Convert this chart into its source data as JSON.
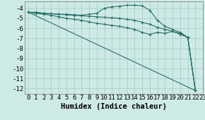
{
  "bg_color": "#ceeae6",
  "grid_color": "#aacfca",
  "line_color": "#2a6e68",
  "xlabel": "Humidex (Indice chaleur)",
  "xlim": [
    -0.5,
    23
  ],
  "ylim": [
    -12.5,
    -3.3
  ],
  "xticks": [
    0,
    1,
    2,
    3,
    4,
    5,
    6,
    7,
    8,
    9,
    10,
    11,
    12,
    13,
    14,
    15,
    16,
    17,
    18,
    19,
    20,
    21,
    22,
    23
  ],
  "yticks": [
    -4,
    -5,
    -6,
    -7,
    -8,
    -9,
    -10,
    -11,
    -12
  ],
  "lines": [
    {
      "x": [
        0,
        1,
        2,
        3,
        4,
        5,
        6,
        7,
        8,
        9,
        10,
        11,
        12,
        13,
        14,
        15,
        16,
        17,
        18,
        19,
        20,
        21,
        22
      ],
      "y": [
        -4.4,
        -4.4,
        -4.5,
        -4.55,
        -4.6,
        -4.6,
        -4.65,
        -4.7,
        -4.6,
        -4.5,
        -4.0,
        -3.85,
        -3.8,
        -3.7,
        -3.7,
        -3.75,
        -4.2,
        -5.2,
        -5.8,
        -6.1,
        -6.4,
        -6.9,
        -12.2
      ],
      "marker": true
    },
    {
      "x": [
        0,
        1,
        2,
        3,
        4,
        5,
        6,
        7,
        8,
        9,
        10,
        11,
        12,
        13,
        14,
        15,
        16,
        17,
        18,
        19,
        20,
        21,
        22
      ],
      "y": [
        -4.4,
        -4.45,
        -4.5,
        -4.55,
        -4.6,
        -4.65,
        -4.7,
        -4.75,
        -4.8,
        -4.85,
        -4.9,
        -4.95,
        -5.0,
        -5.1,
        -5.2,
        -5.4,
        -5.6,
        -5.9,
        -6.1,
        -6.3,
        -6.6,
        -6.9,
        -12.2
      ],
      "marker": true
    },
    {
      "x": [
        0,
        1,
        2,
        3,
        4,
        5,
        6,
        7,
        8,
        9,
        10,
        11,
        12,
        13,
        14,
        15,
        16,
        17,
        18,
        19,
        20,
        21,
        22
      ],
      "y": [
        -4.4,
        -4.5,
        -4.6,
        -4.7,
        -4.85,
        -5.0,
        -5.1,
        -5.2,
        -5.35,
        -5.5,
        -5.6,
        -5.7,
        -5.8,
        -5.95,
        -6.1,
        -6.4,
        -6.6,
        -6.4,
        -6.5,
        -6.3,
        -6.5,
        -6.9,
        -12.2
      ],
      "marker": true
    },
    {
      "x": [
        0,
        22
      ],
      "y": [
        -4.4,
        -12.2
      ],
      "marker": false
    }
  ],
  "font_size_label": 7.5,
  "font_size_tick": 6.5
}
